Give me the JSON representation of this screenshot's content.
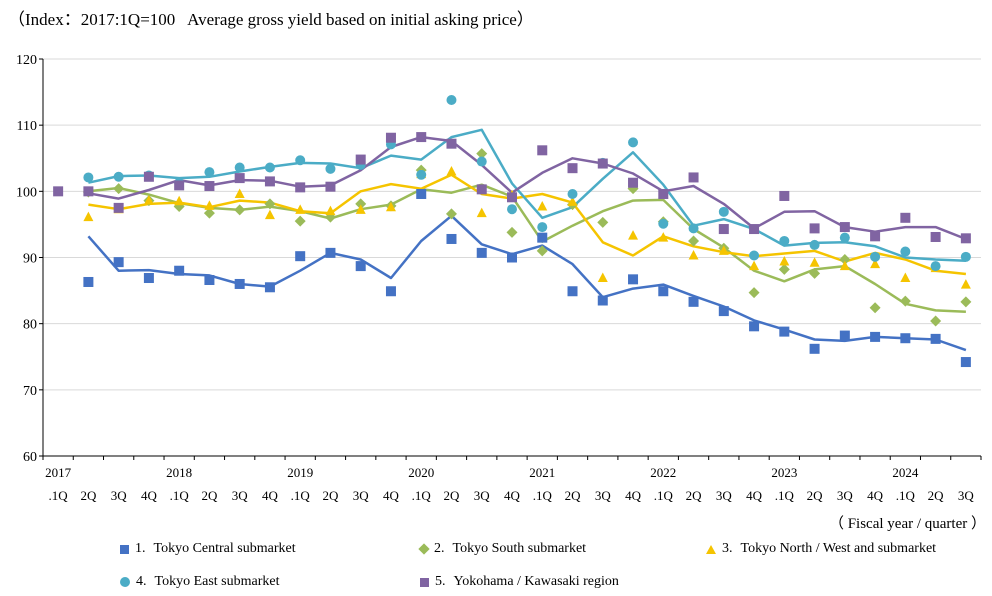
{
  "chart_data": {
    "type": "line",
    "title": "（Index：2017:1Q=100   Average gross yield based on initial asking price）",
    "xlabel": "（ Fiscal year / quarter ）",
    "ylabel": "",
    "ylim": [
      60,
      120
    ],
    "yticks": [
      "60",
      "70",
      "80",
      "90",
      "100",
      "110",
      "120"
    ],
    "year_labels": [
      "2017",
      "2018",
      "2019",
      "2020",
      "2021",
      "2022",
      "2023",
      "2024"
    ],
    "year_label_positions": [
      0,
      4,
      8,
      12,
      16,
      20,
      24,
      28
    ],
    "categories": [
      ".1Q",
      "2Q",
      "3Q",
      "4Q",
      ".1Q",
      "2Q",
      "3Q",
      "4Q",
      ".1Q",
      "2Q",
      "3Q",
      "4Q",
      ".1Q",
      "2Q",
      "3Q",
      "4Q",
      ".1Q",
      "2Q",
      "3Q",
      "4Q",
      ".1Q",
      "2Q",
      "3Q",
      "4Q",
      ".1Q",
      "2Q",
      "3Q",
      "4Q",
      ".1Q",
      "2Q",
      "3Q"
    ],
    "series": [
      {
        "name": "Tokyo Central submarket",
        "index_label": "1.",
        "color": "#4472c4",
        "marker": "square",
        "points": [
          null,
          86.3,
          89.3,
          86.9,
          88.0,
          86.6,
          86.0,
          85.5,
          90.2,
          90.7,
          88.7,
          84.9,
          99.6,
          92.8,
          90.7,
          90.0,
          93.0,
          84.9,
          83.5,
          86.7,
          84.9,
          83.3,
          81.9,
          79.6,
          78.8,
          76.2,
          78.2,
          78.0,
          77.8,
          77.7,
          74.2
        ],
        "trend": [
          null,
          93.2,
          88.0,
          88.1,
          87.5,
          87.3,
          86.0,
          85.6,
          88.0,
          90.7,
          89.7,
          86.9,
          92.5,
          96.3,
          92.0,
          90.5,
          91.8,
          89.0,
          84.0,
          85.3,
          85.9,
          84.2,
          82.6,
          80.5,
          79.1,
          77.6,
          77.4,
          78.0,
          77.8,
          77.6,
          76.0
        ]
      },
      {
        "name": "Tokyo South submarket",
        "index_label": "2.",
        "color": "#9bbb59",
        "marker": "diamond",
        "points": [
          null,
          99.9,
          100.4,
          98.6,
          97.7,
          96.7,
          97.2,
          98.1,
          95.5,
          96.1,
          98.1,
          97.8,
          103.2,
          96.6,
          105.7,
          93.8,
          91.0,
          98.0,
          95.3,
          100.4,
          95.4,
          92.5,
          91.4,
          84.7,
          88.2,
          87.6,
          89.7,
          82.4,
          83.4,
          80.4,
          83.3
        ],
        "trend": [
          null,
          100.0,
          100.5,
          99.5,
          98.2,
          97.5,
          97.2,
          97.7,
          97.0,
          95.9,
          97.3,
          98.0,
          100.3,
          99.8,
          101.0,
          99.2,
          92.4,
          94.8,
          97.0,
          98.6,
          98.7,
          94.3,
          91.5,
          88.0,
          86.4,
          88.2,
          88.7,
          86.0,
          83.0,
          82.0,
          81.8
        ]
      },
      {
        "name": "Tokyo North / West and  submarket",
        "index_label": "3.",
        "color": "#f5c400",
        "marker": "triangle",
        "points": [
          null,
          96.1,
          97.3,
          98.6,
          98.5,
          97.8,
          99.6,
          96.4,
          97.2,
          97.0,
          97.2,
          97.6,
          102.6,
          103.0,
          96.7,
          99.4,
          97.7,
          98.4,
          86.9,
          93.3,
          93.0,
          90.3,
          91.0,
          88.7,
          89.4,
          89.2,
          88.7,
          89.0,
          86.9,
          88.4,
          85.9
        ],
        "trend": [
          null,
          98.0,
          97.3,
          98.1,
          98.3,
          97.6,
          98.6,
          98.3,
          97.0,
          96.7,
          100.0,
          101.1,
          100.4,
          102.5,
          99.6,
          98.9,
          99.6,
          98.3,
          92.3,
          90.3,
          93.2,
          91.7,
          90.8,
          90.2,
          90.6,
          91.0,
          89.4,
          90.7,
          89.7,
          88.0,
          87.5
        ]
      },
      {
        "name": "Tokyo East submarket",
        "index_label": "4.",
        "color": "#4bacc6",
        "marker": "circle",
        "points": [
          null,
          102.1,
          102.2,
          102.4,
          101.3,
          102.9,
          103.6,
          103.6,
          104.7,
          103.4,
          104.0,
          107.1,
          102.5,
          113.8,
          104.5,
          97.3,
          94.6,
          99.6,
          104.3,
          107.4,
          95.1,
          94.4,
          96.9,
          90.3,
          92.5,
          91.9,
          93.0,
          90.1,
          90.9,
          88.7,
          90.1
        ],
        "trend": [
          null,
          101.3,
          102.3,
          102.4,
          102.0,
          102.2,
          103.0,
          103.7,
          104.3,
          104.2,
          103.5,
          105.4,
          104.8,
          108.2,
          109.3,
          101.2,
          96.0,
          97.6,
          101.9,
          105.9,
          101.0,
          94.8,
          95.8,
          94.3,
          91.8,
          92.2,
          92.3,
          91.7,
          90.0,
          89.7,
          89.5
        ]
      },
      {
        "name": "Yokohama / Kawasaki region",
        "index_label": "5.",
        "color": "#8064a2",
        "marker": "square",
        "points": [
          100.0,
          100.0,
          97.5,
          102.2,
          100.9,
          100.8,
          102.0,
          101.5,
          100.6,
          100.7,
          104.8,
          108.1,
          108.2,
          107.2,
          100.3,
          99.1,
          106.2,
          103.5,
          104.2,
          101.3,
          99.6,
          102.1,
          94.3,
          94.3,
          99.3,
          94.4,
          94.6,
          93.2,
          96.0,
          93.1,
          92.9
        ],
        "trend": [
          null,
          99.7,
          98.9,
          100.2,
          101.7,
          100.9,
          101.7,
          101.6,
          100.7,
          100.9,
          103.2,
          106.7,
          108.2,
          107.6,
          104.0,
          99.8,
          102.8,
          105.0,
          104.2,
          102.7,
          100.0,
          100.8,
          98.1,
          94.4,
          96.9,
          97.0,
          94.6,
          93.9,
          94.6,
          94.6,
          92.8
        ]
      }
    ]
  }
}
